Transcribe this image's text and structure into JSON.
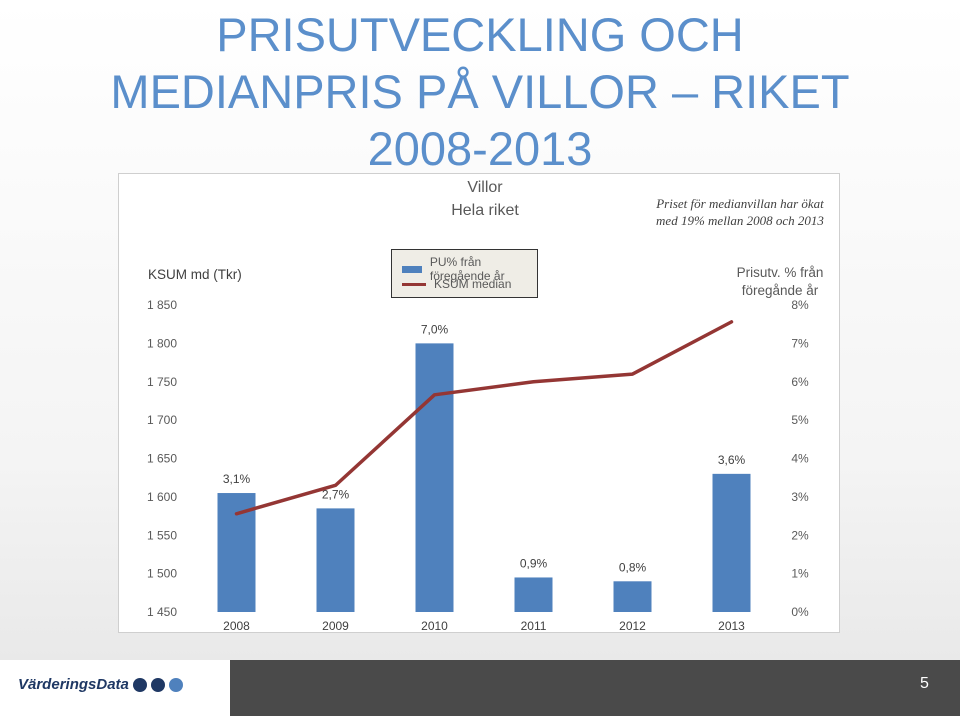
{
  "slide": {
    "title_line1": "PRISUTVECKLING OCH",
    "title_line2_part1": "MEDIANPRIS PÅ VILLOR ",
    "title_line2_part2": "–",
    "title_line2_part3": " RIKET",
    "title_line3": "2008-2013",
    "page_number": "5",
    "logo_text": "VärderingsData"
  },
  "chart_data": {
    "type": "bar",
    "title_line1": "Villor",
    "title_line2": "Hela riket",
    "note_line1": "Priset för medianvillan har ökat",
    "note_line2": "med 19% mellan 2008 och 2013",
    "categories": [
      "2008",
      "2009",
      "2010",
      "2011",
      "2012",
      "2013"
    ],
    "series": [
      {
        "name": "PU% från föregående år",
        "axis": "right",
        "kind": "bar",
        "values": [
          3.1,
          2.7,
          7.0,
          0.9,
          0.8,
          3.6
        ],
        "labels": [
          "3,1%",
          "2,7%",
          "7,0%",
          "0,9%",
          "0,8%",
          "3,6%"
        ],
        "color": "#4f81bd"
      },
      {
        "name": "KSUM median",
        "axis": "left",
        "kind": "line",
        "values": [
          1578,
          1615,
          1733,
          1750,
          1760,
          1828
        ],
        "color": "#943634"
      }
    ],
    "left_axis": {
      "label": "KSUM md (Tkr)",
      "min": 1450,
      "max": 1850,
      "step": 50,
      "ticks": [
        "1 450",
        "1 500",
        "1 550",
        "1 600",
        "1 650",
        "1 700",
        "1 750",
        "1 800",
        "1 850"
      ]
    },
    "right_axis": {
      "label_line1": "Prisutv. % från",
      "label_line2": "föregånde år",
      "min": 0,
      "max": 8,
      "step": 1,
      "ticks": [
        "0%",
        "1%",
        "2%",
        "3%",
        "4%",
        "5%",
        "6%",
        "7%",
        "8%"
      ]
    },
    "grid": false,
    "legend_placement": "top-center"
  }
}
